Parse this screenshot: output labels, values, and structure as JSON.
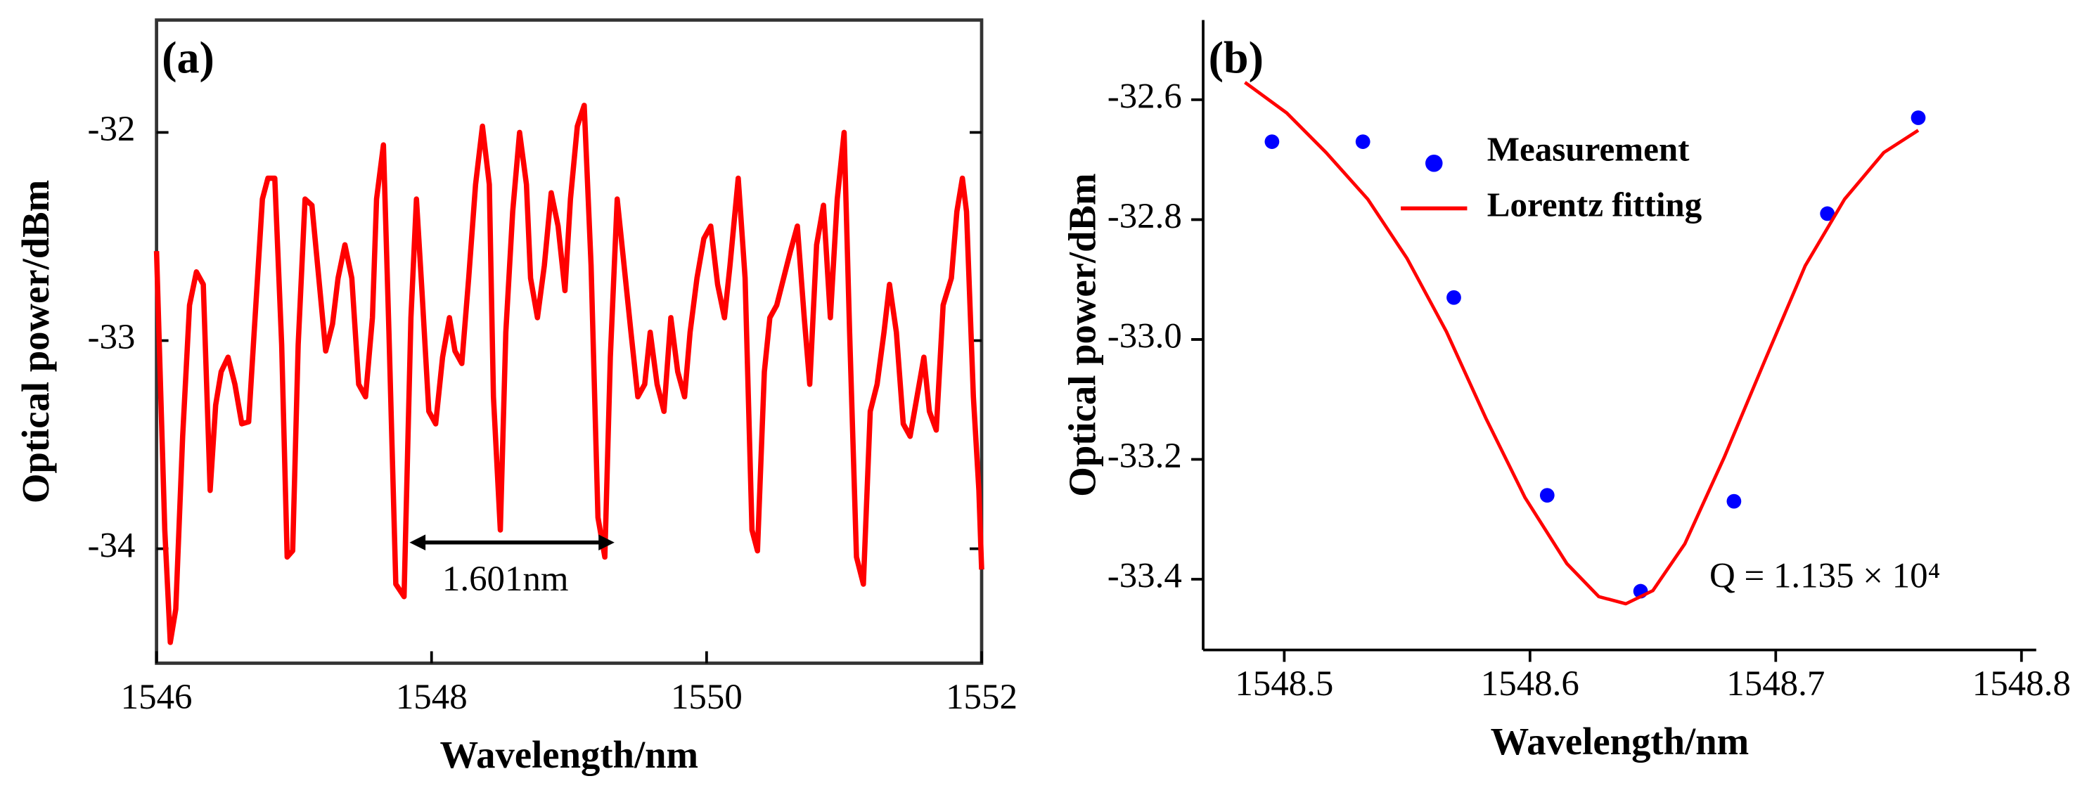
{
  "chart_data": [
    {
      "type": "line",
      "label": "(a)",
      "xlabel": "Wavelength/nm",
      "ylabel": "Optical power/dBm",
      "color": "#ff0000",
      "xlim": [
        1546,
        1552
      ],
      "xticks": [
        1546,
        1548,
        1550,
        1552
      ],
      "ylim": [
        -34.55,
        -31.46
      ],
      "yticks": [
        -32,
        -33,
        -34
      ],
      "x": [
        1546.0,
        1546.06,
        1546.1,
        1546.14,
        1546.19,
        1546.24,
        1546.29,
        1546.34,
        1546.39,
        1546.43,
        1546.47,
        1546.52,
        1546.57,
        1546.62,
        1546.67,
        1546.71,
        1546.77,
        1546.81,
        1546.86,
        1546.91,
        1546.95,
        1546.99,
        1547.03,
        1547.08,
        1547.13,
        1547.18,
        1547.23,
        1547.28,
        1547.32,
        1547.37,
        1547.42,
        1547.47,
        1547.52,
        1547.57,
        1547.6,
        1547.65,
        1547.69,
        1547.74,
        1547.8,
        1547.85,
        1547.89,
        1547.93,
        1547.98,
        1548.03,
        1548.08,
        1548.13,
        1548.17,
        1548.22,
        1548.27,
        1548.32,
        1548.37,
        1548.42,
        1548.45,
        1548.5,
        1548.54,
        1548.59,
        1548.64,
        1548.69,
        1548.72,
        1548.77,
        1548.82,
        1548.87,
        1548.92,
        1548.97,
        1549.01,
        1549.06,
        1549.11,
        1549.16,
        1549.21,
        1549.26,
        1549.3,
        1549.35,
        1549.4,
        1549.45,
        1549.5,
        1549.55,
        1549.59,
        1549.64,
        1549.69,
        1549.74,
        1549.79,
        1549.84,
        1549.88,
        1549.93,
        1549.98,
        1550.03,
        1550.08,
        1550.13,
        1550.17,
        1550.23,
        1550.28,
        1550.33,
        1550.37,
        1550.42,
        1550.46,
        1550.51,
        1550.56,
        1550.61,
        1550.66,
        1550.71,
        1550.75,
        1550.8,
        1550.85,
        1550.9,
        1550.95,
        1551.0,
        1551.04,
        1551.09,
        1551.14,
        1551.19,
        1551.24,
        1551.29,
        1551.33,
        1551.38,
        1551.43,
        1551.48,
        1551.53,
        1551.58,
        1551.62,
        1551.67,
        1551.72,
        1551.78,
        1551.82,
        1551.86,
        1551.89,
        1551.94,
        1551.98,
        1552.0
      ],
      "values": [
        -32.57,
        -33.91,
        -34.45,
        -34.29,
        -33.46,
        -32.83,
        -32.67,
        -32.73,
        -33.72,
        -33.31,
        -33.15,
        -33.08,
        -33.21,
        -33.4,
        -33.39,
        -32.96,
        -32.32,
        -32.22,
        -32.22,
        -33.02,
        -34.04,
        -34.01,
        -33.02,
        -32.32,
        -32.35,
        -32.7,
        -33.05,
        -32.92,
        -32.7,
        -32.54,
        -32.7,
        -33.21,
        -33.27,
        -32.89,
        -32.32,
        -32.06,
        -32.96,
        -34.17,
        -34.23,
        -32.89,
        -32.32,
        -32.76,
        -33.34,
        -33.4,
        -33.08,
        -32.89,
        -33.05,
        -33.11,
        -32.7,
        -32.25,
        -31.97,
        -32.25,
        -33.27,
        -33.91,
        -32.96,
        -32.38,
        -32.0,
        -32.25,
        -32.7,
        -32.89,
        -32.64,
        -32.29,
        -32.45,
        -32.76,
        -32.32,
        -31.97,
        -31.87,
        -32.64,
        -33.85,
        -34.04,
        -33.08,
        -32.32,
        -32.64,
        -32.96,
        -33.27,
        -33.21,
        -32.96,
        -33.21,
        -33.34,
        -32.89,
        -33.15,
        -33.27,
        -32.96,
        -32.7,
        -32.51,
        -32.45,
        -32.73,
        -32.89,
        -32.64,
        -32.22,
        -32.7,
        -33.91,
        -34.01,
        -33.15,
        -32.89,
        -32.83,
        -32.7,
        -32.57,
        -32.45,
        -32.89,
        -33.21,
        -32.54,
        -32.35,
        -32.89,
        -32.32,
        -32.0,
        -32.96,
        -34.04,
        -34.17,
        -33.34,
        -33.21,
        -32.96,
        -32.73,
        -32.96,
        -33.4,
        -33.46,
        -33.27,
        -33.08,
        -33.34,
        -33.43,
        -32.83,
        -32.7,
        -32.38,
        -32.22,
        -32.38,
        -33.27,
        -33.72,
        -34.1
      ],
      "annotations": [
        {
          "text": "1.601nm",
          "x_start": 1547.84,
          "x_end": 1549.33,
          "y": -33.97
        }
      ]
    },
    {
      "type": "scatter",
      "label": "(b)",
      "xlabel": "Wavelength/nm",
      "ylabel": "Optical power/dBm",
      "xlim": [
        1548.467,
        1548.806
      ],
      "xticks": [
        1548.5,
        1548.6,
        1548.7,
        1548.8
      ],
      "ylim": [
        -33.518,
        -32.467
      ],
      "yticks": [
        -32.6,
        -32.8,
        {
          "value": -33,
          "label": "-33.0"
        },
        -33.2,
        -33.4
      ],
      "legend": "upper center",
      "series": [
        {
          "name": "Measurement",
          "type": "scatter",
          "color": "#0000ff",
          "x": [
            1548.495,
            1548.532,
            1548.569,
            1548.607,
            1548.645,
            1548.683,
            1548.721,
            1548.758
          ],
          "values": [
            -32.67,
            -32.67,
            -32.93,
            -33.26,
            -33.42,
            -33.27,
            -32.79,
            -32.63
          ]
        },
        {
          "name": "Lorentz fitting",
          "type": "line",
          "color": "#ff0000",
          "x": [
            1548.484,
            1548.501,
            1548.517,
            1548.534,
            1548.55,
            1548.566,
            1548.582,
            1548.598,
            1548.615,
            1548.628,
            1548.639,
            1548.65,
            1548.663,
            1548.679,
            1548.696,
            1548.712,
            1548.728,
            1548.744,
            1548.758
          ],
          "values": [
            -32.571,
            -32.622,
            -32.688,
            -32.766,
            -32.865,
            -32.987,
            -33.131,
            -33.264,
            -33.374,
            -33.429,
            -33.441,
            -33.419,
            -33.341,
            -33.197,
            -33.031,
            -32.877,
            -32.766,
            -32.688,
            -32.651
          ]
        }
      ],
      "annotations": [
        {
          "text": "Q = 1.135 × 10⁴",
          "x": 1548.72,
          "y": -33.4
        }
      ]
    }
  ]
}
